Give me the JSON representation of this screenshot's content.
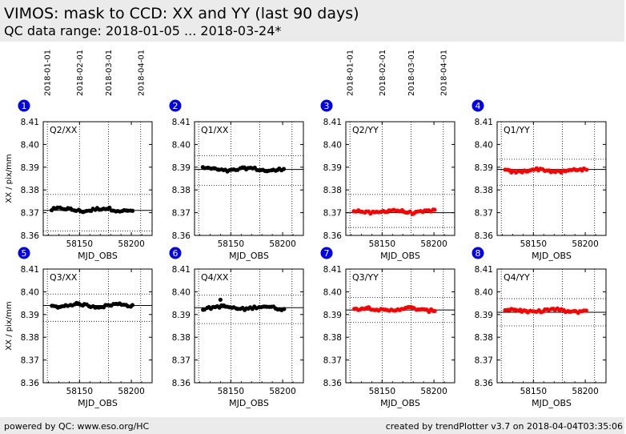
{
  "header": {
    "title": "VIMOS: mask to CCD: XX and YY (last 90 days)",
    "subtitle": "QC data range: 2018-01-05 ... 2018-03-24*"
  },
  "footer": {
    "left": "powered by QC: www.eso.org/HC",
    "right": "created by trendPlotter v3.7 on 2018-04-04T03:35:06"
  },
  "colors": {
    "xx": "#000000",
    "yy": "#ff0000",
    "badge": "#0000ee"
  },
  "chart_data": {
    "type": "scatter",
    "xlabel": "MJD_OBS",
    "ylabel": "XX / pix/mm",
    "xlim": [
      58115,
      58220
    ],
    "ylim": [
      8.36,
      8.41
    ],
    "x_ticks": [
      58150,
      58200
    ],
    "y_ticks": [
      "8.36",
      "8.37",
      "8.38",
      "8.39",
      "8.40",
      "8.41"
    ],
    "date_ticks": [
      {
        "label": "2018-01-01",
        "mjd": 58119
      },
      {
        "label": "2018-02-01",
        "mjd": 58150
      },
      {
        "label": "2018-03-01",
        "mjd": 58178
      },
      {
        "label": "2018-04-01",
        "mjd": 58209
      }
    ],
    "x_range": [
      58123,
      58201
    ],
    "panels": [
      {
        "badge": "1",
        "label": "Q2/XX",
        "color": "xx",
        "ref": 8.371,
        "band": [
          8.362,
          8.378
        ],
        "base": 8.3713,
        "noise": 0.0012
      },
      {
        "badge": "2",
        "label": "Q1/XX",
        "color": "xx",
        "ref": 8.389,
        "band": [
          8.382,
          8.395
        ],
        "base": 8.389,
        "noise": 0.0011
      },
      {
        "badge": "3",
        "label": "Q2/YY",
        "color": "yy",
        "ref": 8.37,
        "band": [
          8.3635,
          8.378
        ],
        "base": 8.3705,
        "noise": 0.0011
      },
      {
        "badge": "4",
        "label": "Q1/YY",
        "color": "yy",
        "ref": 8.389,
        "band": [
          8.382,
          8.3935
        ],
        "base": 8.3885,
        "noise": 0.001
      },
      {
        "badge": "5",
        "label": "Q3/XX",
        "color": "xx",
        "ref": 8.394,
        "band": [
          8.387,
          8.399
        ],
        "base": 8.394,
        "noise": 0.001,
        "show_ylabel": true
      },
      {
        "badge": "6",
        "label": "Q4/XX",
        "color": "xx",
        "ref": 8.393,
        "band": [
          8.386,
          8.3985
        ],
        "base": 8.393,
        "noise": 0.0011,
        "outlier": [
          58140,
          8.3965
        ]
      },
      {
        "badge": "7",
        "label": "Q3/YY",
        "color": "yy",
        "ref": 8.392,
        "band": [
          8.3865,
          8.3975
        ],
        "base": 8.3923,
        "noise": 0.0011
      },
      {
        "badge": "8",
        "label": "Q4/YY",
        "color": "yy",
        "ref": 8.391,
        "band": [
          8.385,
          8.397
        ],
        "base": 8.3917,
        "noise": 0.0011
      }
    ]
  }
}
